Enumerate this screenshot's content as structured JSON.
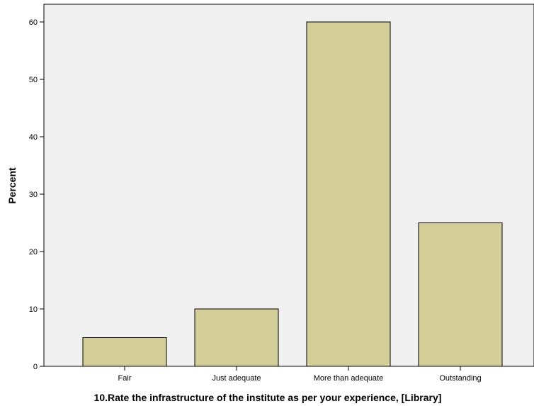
{
  "chart_data": {
    "type": "bar",
    "title": "",
    "xlabel": "10.Rate the infrastructure of the institute as per your experience, [Library]",
    "ylabel": "Percent",
    "categories": [
      "Fair",
      "Just adequate",
      "More than adequate",
      "Outstanding"
    ],
    "values": [
      5,
      10,
      60,
      25
    ],
    "ylim": [
      0,
      64
    ],
    "yticks": [
      "0",
      "10",
      "20",
      "30",
      "40",
      "50",
      "60"
    ],
    "grid": false,
    "legend": "none",
    "colors": {
      "bar_fill": "#d3ce97",
      "bar_stroke": "#000000",
      "plot_background": "#f0f0f0"
    }
  }
}
